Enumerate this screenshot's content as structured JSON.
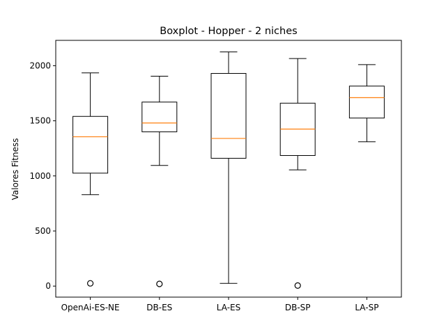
{
  "chart_data": {
    "type": "boxplot",
    "title": "Boxplot - Hopper - 2 niches",
    "xlabel": "",
    "ylabel": "Valores Fitness",
    "ylim": [
      -100,
      2230
    ],
    "yticks": [
      0,
      500,
      1000,
      1500,
      2000
    ],
    "grid": false,
    "categories": [
      "OpenAi-ES-NE",
      "DB-ES",
      "LA-ES",
      "DB-SP",
      "LA-SP"
    ],
    "boxes": [
      {
        "whisker_low": 830,
        "q1": 1025,
        "median": 1355,
        "q3": 1540,
        "whisker_high": 1935,
        "outliers": [
          25
        ]
      },
      {
        "whisker_low": 1095,
        "q1": 1400,
        "median": 1480,
        "q3": 1670,
        "whisker_high": 1905,
        "outliers": [
          20
        ]
      },
      {
        "whisker_low": 25,
        "q1": 1160,
        "median": 1340,
        "q3": 1930,
        "whisker_high": 2125,
        "outliers": []
      },
      {
        "whisker_low": 1055,
        "q1": 1185,
        "median": 1425,
        "q3": 1660,
        "whisker_high": 2065,
        "outliers": [
          5
        ]
      },
      {
        "whisker_low": 1310,
        "q1": 1525,
        "median": 1710,
        "q3": 1815,
        "whisker_high": 2010,
        "outliers": []
      }
    ],
    "colors": {
      "box": "#000000",
      "median": "#ff7f0e",
      "outlier": "#000000"
    }
  }
}
